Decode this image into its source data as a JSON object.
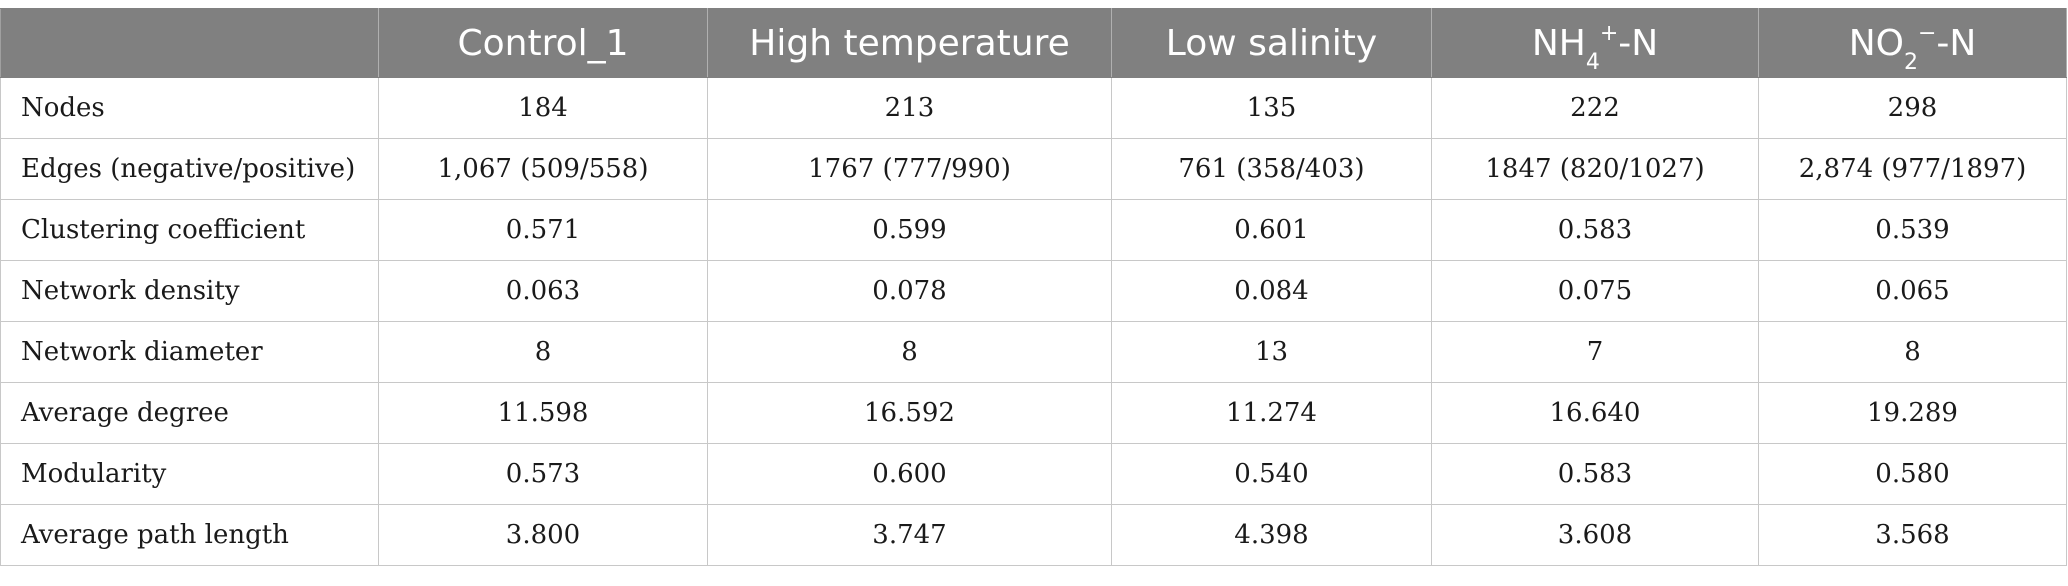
{
  "table": {
    "headers": [
      {
        "text": ""
      },
      {
        "text": "Control_1"
      },
      {
        "text": "High temperature"
      },
      {
        "text": "Low salinity"
      },
      {
        "base": "NH",
        "sub": "4",
        "sup": "+",
        "suffix": "-N"
      },
      {
        "base": "NO",
        "sub": "2",
        "sup": "−",
        "suffix": "-N"
      }
    ],
    "rows": [
      {
        "label": "Nodes",
        "values": [
          "184",
          "213",
          "135",
          "222",
          "298"
        ]
      },
      {
        "label": "Edges (negative/positive)",
        "values": [
          "1,067 (509/558)",
          "1767 (777/990)",
          "761 (358/403)",
          "1847 (820/1027)",
          "2,874 (977/1897)"
        ]
      },
      {
        "label": "Clustering coefficient",
        "values": [
          "0.571",
          "0.599",
          "0.601",
          "0.583",
          "0.539"
        ]
      },
      {
        "label": "Network density",
        "values": [
          "0.063",
          "0.078",
          "0.084",
          "0.075",
          "0.065"
        ]
      },
      {
        "label": "Network diameter",
        "values": [
          "8",
          "8",
          "13",
          "7",
          "8"
        ]
      },
      {
        "label": "Average degree",
        "values": [
          "11.598",
          "16.592",
          "11.274",
          "16.640",
          "19.289"
        ]
      },
      {
        "label": "Modularity",
        "values": [
          "0.573",
          "0.600",
          "0.540",
          "0.583",
          "0.580"
        ]
      },
      {
        "label": "Average path length",
        "values": [
          "3.800",
          "3.747",
          "4.398",
          "3.608",
          "3.568"
        ]
      }
    ]
  }
}
